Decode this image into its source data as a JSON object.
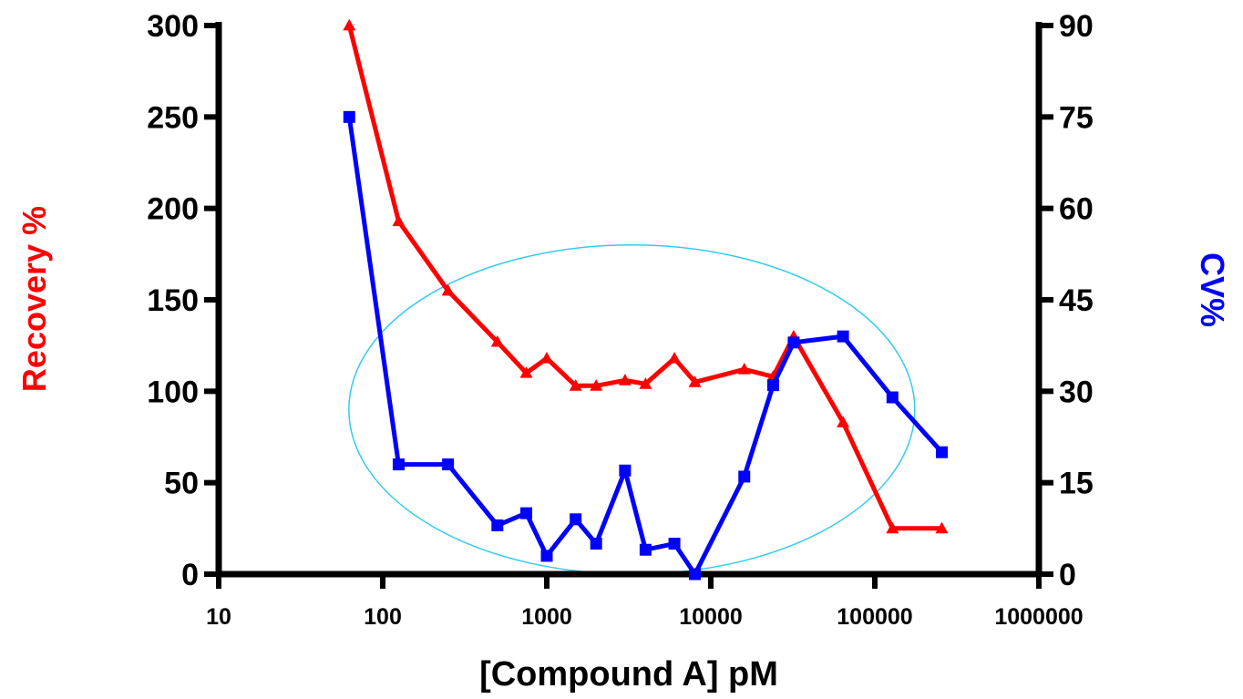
{
  "chart_data": {
    "type": "line",
    "xlabel": "[Compound A] pM",
    "ylabel_left": "Recovery %",
    "ylabel_right": "CV%",
    "x_scale": "log",
    "xlim": [
      10,
      1000000
    ],
    "x_ticks": [
      10,
      100,
      1000,
      10000,
      100000,
      1000000
    ],
    "x_tick_labels": [
      "10",
      "100",
      "1000",
      "10000",
      "100000",
      "1000000"
    ],
    "ylim_left": [
      0,
      300
    ],
    "y_ticks_left": [
      0,
      50,
      100,
      150,
      200,
      250,
      300
    ],
    "y_tick_labels_left": [
      "0",
      "50",
      "100",
      "150",
      "200",
      "250",
      "300"
    ],
    "ylim_right": [
      0,
      90
    ],
    "y_ticks_right": [
      0,
      15,
      30,
      45,
      60,
      75,
      90
    ],
    "y_tick_labels_right": [
      "0",
      "15",
      "30",
      "45",
      "60",
      "75",
      "90"
    ],
    "grid": false,
    "series": [
      {
        "axis": "left",
        "color": "#ff0000",
        "marker": "triangle",
        "points": [
          [
            62.5,
            300
          ],
          [
            125,
            193
          ],
          [
            250,
            155
          ],
          [
            500,
            127
          ],
          [
            750,
            110
          ],
          [
            1000,
            118
          ],
          [
            1500,
            103
          ],
          [
            2000,
            103
          ],
          [
            3000,
            106
          ],
          [
            4000,
            104
          ],
          [
            6000,
            118
          ],
          [
            8000,
            105
          ],
          [
            16000,
            112
          ],
          [
            24000,
            108
          ],
          [
            32000,
            130
          ],
          [
            64000,
            83
          ],
          [
            128000,
            25
          ],
          [
            256000,
            25
          ]
        ]
      },
      {
        "axis": "right",
        "color": "#0000ff",
        "marker": "square",
        "points": [
          [
            62.5,
            75
          ],
          [
            125,
            18
          ],
          [
            250,
            18
          ],
          [
            500,
            8
          ],
          [
            750,
            10
          ],
          [
            1000,
            3
          ],
          [
            1500,
            9
          ],
          [
            2000,
            5
          ],
          [
            3000,
            17
          ],
          [
            4000,
            4
          ],
          [
            6000,
            5
          ],
          [
            8000,
            0
          ],
          [
            16000,
            16
          ],
          [
            24000,
            31
          ],
          [
            32000,
            38
          ],
          [
            64000,
            39
          ],
          [
            128000,
            29
          ],
          [
            256000,
            20
          ]
        ]
      }
    ],
    "annotation": {
      "shape": "ellipse",
      "color": "#33ccee",
      "center_x": 3300,
      "center_y_left": 90,
      "radius_x_decades": 1.725,
      "radius_y_left": 90
    }
  }
}
